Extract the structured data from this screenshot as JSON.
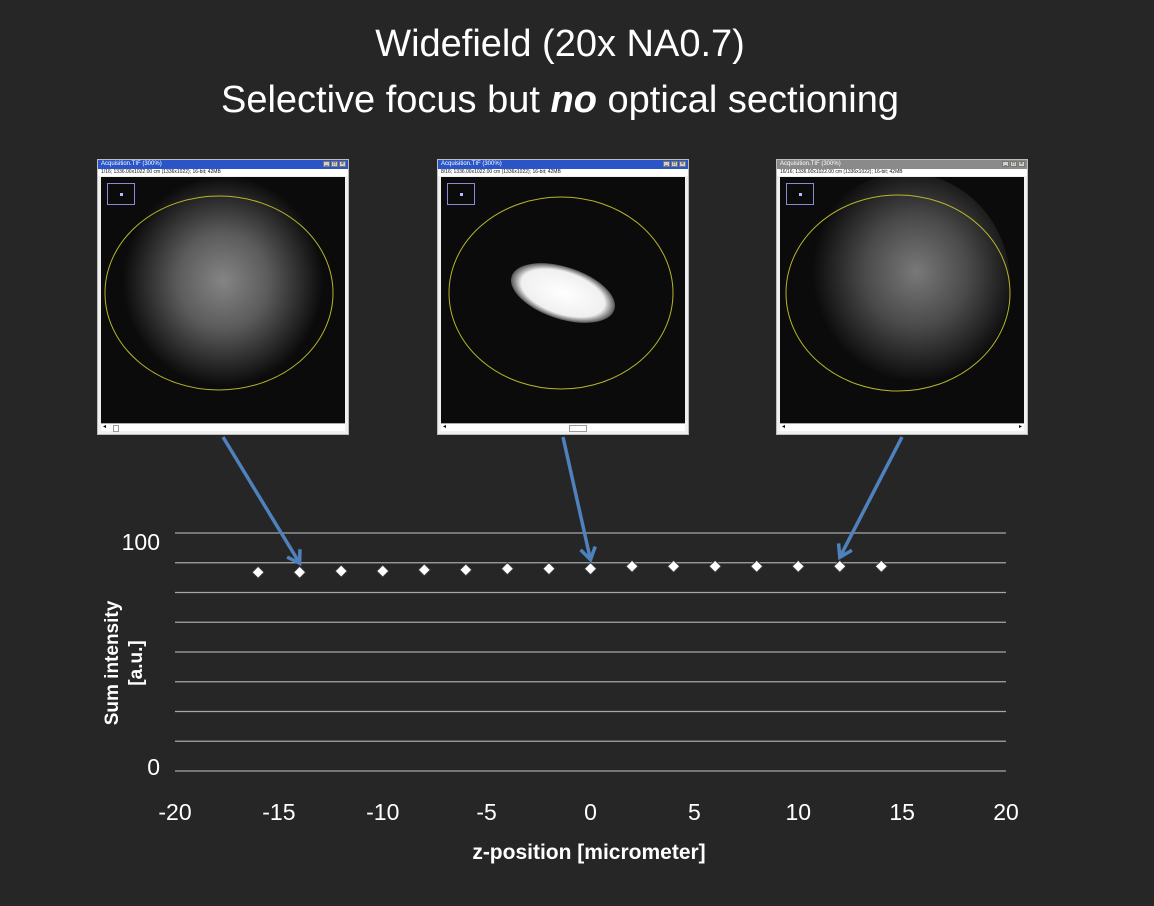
{
  "slide": {
    "title_line1": "Widefield (20x NA0.7)",
    "title_line2_pre": "Selective focus but ",
    "title_line2_em": "no",
    "title_line2_post": " optical sectioning"
  },
  "windows": [
    {
      "title": "Acquisition.TIF (300%)",
      "subtitle": "1/16; 1336.00x1022.00 cm (1336x1022); 16-bit; 42MB",
      "z_position": -14,
      "focus": "blurred",
      "titlebar_color": "#2a55c8"
    },
    {
      "title": "Acquisition.TIF (300%)",
      "subtitle": "8/16; 1336.00x1022.00 cm (1336x1022); 16-bit; 42MB",
      "z_position": 0,
      "focus": "in-focus",
      "titlebar_color": "#2a55c8"
    },
    {
      "title": "Acquisition.TIF (300%)",
      "subtitle": "16/16; 1336.00x1022.00 cm (1336x1022); 16-bit; 42MB",
      "z_position": 12,
      "focus": "blurred",
      "titlebar_color": "#8a8a8a"
    }
  ],
  "chart_data": {
    "type": "scatter",
    "title": "",
    "xlabel": "z-position [micrometer]",
    "ylabel_line1": "Sum intensity",
    "ylabel_line2": "[a.u.]",
    "xlim": [
      -20,
      20
    ],
    "ylim": [
      0,
      100
    ],
    "x_ticks": [
      -20,
      -15,
      -10,
      -5,
      0,
      5,
      10,
      15,
      20
    ],
    "y_ticks_labeled": [
      0,
      100
    ],
    "y_gridlines": [
      0,
      12.5,
      25,
      37.5,
      50,
      62.5,
      75,
      87.5,
      100
    ],
    "grid": true,
    "marker": "diamond",
    "colors": {
      "marker_fill": "#ffffff",
      "marker_stroke": "#3a3a3a",
      "grid": "#a6a6a6",
      "arrow": "#4f81bd"
    },
    "series": [
      {
        "x": [
          -16,
          -14,
          -12,
          -10,
          -8,
          -6,
          -4,
          -2,
          0,
          2,
          4,
          6,
          8,
          10,
          12,
          14
        ],
        "y": [
          83.5,
          83.5,
          84,
          84,
          84.5,
          84.5,
          85,
          85,
          85,
          86,
          86,
          86,
          86,
          86,
          86,
          86
        ]
      }
    ]
  }
}
